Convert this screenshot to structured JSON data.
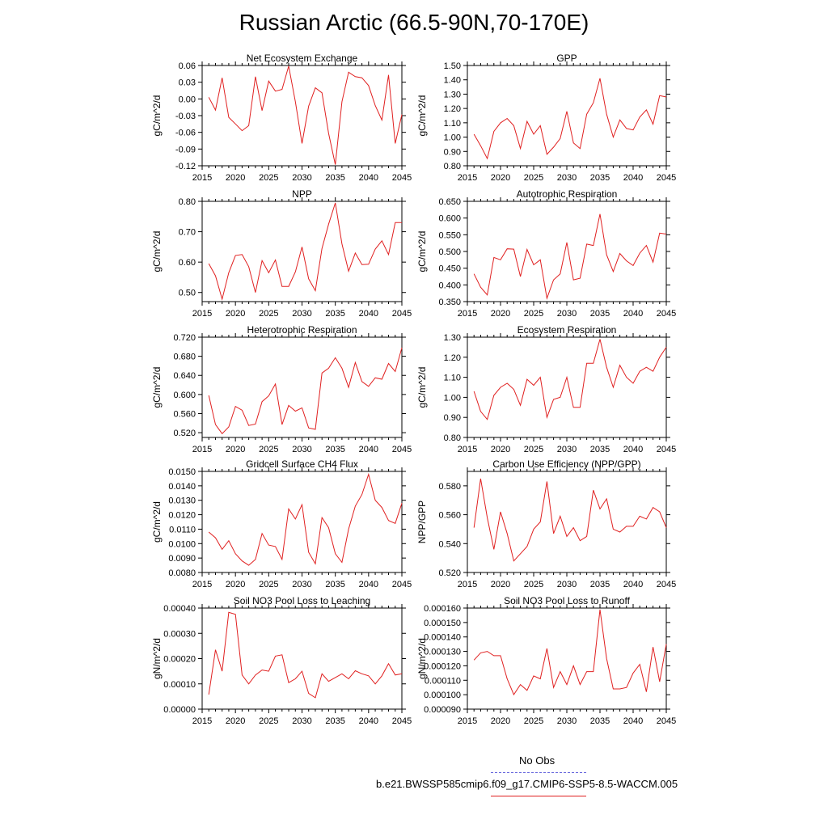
{
  "title": "Russian Arctic (66.5-90N,70-170E)",
  "legend": {
    "obs_label": "No Obs",
    "model_label": "b.e21.BWSSP585cmip6.f09_g17.CMIP6-SSP5-8.5-WACCM.005",
    "obs_color": "#6666dd",
    "model_color": "#e02020"
  },
  "chart_data": [
    {
      "type": "line",
      "title": "Net Ecosystem Exchange",
      "ylabel": "gC/m^2/d",
      "xlim": [
        2015,
        2045
      ],
      "ylim": [
        -0.12,
        0.06
      ],
      "xticks": [
        2015,
        2020,
        2025,
        2030,
        2035,
        2040,
        2045
      ],
      "yticks": [
        "-0.12",
        "-0.09",
        "-0.06",
        "-0.03",
        "0.00",
        "0.03",
        "0.06"
      ],
      "x": [
        2016,
        2017,
        2018,
        2019,
        2020,
        2021,
        2022,
        2023,
        2024,
        2025,
        2026,
        2027,
        2028,
        2029,
        2030,
        2031,
        2032,
        2033,
        2034,
        2035,
        2036,
        2037,
        2038,
        2039,
        2040,
        2041,
        2042,
        2043,
        2044,
        2045
      ],
      "series": [
        {
          "name": "b.e21.BWSSP585cmip6.f09_g17.CMIP6-SSP5-8.5-WACCM.005",
          "values": [
            0.003,
            -0.02,
            0.038,
            -0.033,
            -0.045,
            -0.057,
            -0.048,
            0.04,
            -0.021,
            0.032,
            0.014,
            0.017,
            0.059,
            -0.005,
            -0.08,
            -0.013,
            0.02,
            0.011,
            -0.062,
            -0.118,
            -0.005,
            0.048,
            0.04,
            0.038,
            0.024,
            -0.012,
            -0.038,
            0.043,
            -0.08,
            -0.028
          ]
        }
      ]
    },
    {
      "type": "line",
      "title": "GPP",
      "ylabel": "gC/m^2/d",
      "xlim": [
        2015,
        2045
      ],
      "ylim": [
        0.8,
        1.5
      ],
      "xticks": [
        2015,
        2020,
        2025,
        2030,
        2035,
        2040,
        2045
      ],
      "yticks": [
        "0.80",
        "0.90",
        "1.00",
        "1.10",
        "1.20",
        "1.30",
        "1.40",
        "1.50"
      ],
      "x": [
        2016,
        2017,
        2018,
        2019,
        2020,
        2021,
        2022,
        2023,
        2024,
        2025,
        2026,
        2027,
        2028,
        2029,
        2030,
        2031,
        2032,
        2033,
        2034,
        2035,
        2036,
        2037,
        2038,
        2039,
        2040,
        2041,
        2042,
        2043,
        2044,
        2045
      ],
      "series": [
        {
          "name": "b.e21.BWSSP585cmip6.f09_g17.CMIP6-SSP5-8.5-WACCM.005",
          "values": [
            1.02,
            0.94,
            0.85,
            1.04,
            1.1,
            1.13,
            1.08,
            0.92,
            1.11,
            1.02,
            1.08,
            0.88,
            0.93,
            0.99,
            1.18,
            0.96,
            0.92,
            1.16,
            1.24,
            1.41,
            1.16,
            1.0,
            1.12,
            1.06,
            1.05,
            1.14,
            1.19,
            1.09,
            1.29,
            1.28
          ]
        }
      ]
    },
    {
      "type": "line",
      "title": "NPP",
      "ylabel": "gC/m^2/d",
      "xlim": [
        2015,
        2045
      ],
      "ylim": [
        0.47,
        0.8
      ],
      "xticks": [
        2015,
        2020,
        2025,
        2030,
        2035,
        2040,
        2045
      ],
      "yticks": [
        "0.50",
        "0.60",
        "0.70",
        "0.80"
      ],
      "x": [
        2016,
        2017,
        2018,
        2019,
        2020,
        2021,
        2022,
        2023,
        2024,
        2025,
        2026,
        2027,
        2028,
        2029,
        2030,
        2031,
        2032,
        2033,
        2034,
        2035,
        2036,
        2037,
        2038,
        2039,
        2040,
        2041,
        2042,
        2043,
        2044,
        2045
      ],
      "series": [
        {
          "name": "b.e21.BWSSP585cmip6.f09_g17.CMIP6-SSP5-8.5-WACCM.005",
          "values": [
            0.595,
            0.555,
            0.478,
            0.565,
            0.622,
            0.625,
            0.585,
            0.5,
            0.605,
            0.565,
            0.607,
            0.52,
            0.52,
            0.568,
            0.65,
            0.545,
            0.506,
            0.645,
            0.725,
            0.795,
            0.66,
            0.57,
            0.63,
            0.592,
            0.593,
            0.643,
            0.67,
            0.625,
            0.73,
            0.73
          ]
        }
      ]
    },
    {
      "type": "line",
      "title": "Autotrophic Respiration",
      "ylabel": "gC/m^2/d",
      "xlim": [
        2015,
        2045
      ],
      "ylim": [
        0.35,
        0.65
      ],
      "xticks": [
        2015,
        2020,
        2025,
        2030,
        2035,
        2040,
        2045
      ],
      "yticks": [
        "0.350",
        "0.400",
        "0.450",
        "0.500",
        "0.550",
        "0.600",
        "0.650"
      ],
      "x": [
        2016,
        2017,
        2018,
        2019,
        2020,
        2021,
        2022,
        2023,
        2024,
        2025,
        2026,
        2027,
        2028,
        2029,
        2030,
        2031,
        2032,
        2033,
        2034,
        2035,
        2036,
        2037,
        2038,
        2039,
        2040,
        2041,
        2042,
        2043,
        2044,
        2045
      ],
      "series": [
        {
          "name": "b.e21.BWSSP585cmip6.f09_g17.CMIP6-SSP5-8.5-WACCM.005",
          "values": [
            0.433,
            0.393,
            0.37,
            0.482,
            0.475,
            0.508,
            0.507,
            0.425,
            0.506,
            0.46,
            0.475,
            0.36,
            0.415,
            0.433,
            0.527,
            0.415,
            0.42,
            0.522,
            0.518,
            0.612,
            0.49,
            0.44,
            0.494,
            0.472,
            0.458,
            0.495,
            0.518,
            0.468,
            0.555,
            0.552
          ]
        }
      ]
    },
    {
      "type": "line",
      "title": "Heterotrophic Respiration",
      "ylabel": "gC/m^2/d",
      "xlim": [
        2015,
        2045
      ],
      "ylim": [
        0.51,
        0.72
      ],
      "xticks": [
        2015,
        2020,
        2025,
        2030,
        2035,
        2040,
        2045
      ],
      "yticks": [
        "0.520",
        "0.560",
        "0.600",
        "0.640",
        "0.680",
        "0.720"
      ],
      "x": [
        2016,
        2017,
        2018,
        2019,
        2020,
        2021,
        2022,
        2023,
        2024,
        2025,
        2026,
        2027,
        2028,
        2029,
        2030,
        2031,
        2032,
        2033,
        2034,
        2035,
        2036,
        2037,
        2038,
        2039,
        2040,
        2041,
        2042,
        2043,
        2044,
        2045
      ],
      "series": [
        {
          "name": "b.e21.BWSSP585cmip6.f09_g17.CMIP6-SSP5-8.5-WACCM.005",
          "values": [
            0.598,
            0.537,
            0.518,
            0.532,
            0.575,
            0.567,
            0.535,
            0.538,
            0.585,
            0.597,
            0.622,
            0.537,
            0.577,
            0.565,
            0.572,
            0.53,
            0.527,
            0.645,
            0.655,
            0.677,
            0.655,
            0.615,
            0.667,
            0.627,
            0.617,
            0.635,
            0.632,
            0.665,
            0.648,
            0.698
          ]
        }
      ]
    },
    {
      "type": "line",
      "title": "Ecosystem Respiration",
      "ylabel": "gC/m^2/d",
      "xlim": [
        2015,
        2045
      ],
      "ylim": [
        0.8,
        1.3
      ],
      "xticks": [
        2015,
        2020,
        2025,
        2030,
        2035,
        2040,
        2045
      ],
      "yticks": [
        "0.80",
        "0.90",
        "1.00",
        "1.10",
        "1.20",
        "1.30"
      ],
      "x": [
        2016,
        2017,
        2018,
        2019,
        2020,
        2021,
        2022,
        2023,
        2024,
        2025,
        2026,
        2027,
        2028,
        2029,
        2030,
        2031,
        2032,
        2033,
        2034,
        2035,
        2036,
        2037,
        2038,
        2039,
        2040,
        2041,
        2042,
        2043,
        2044,
        2045
      ],
      "series": [
        {
          "name": "b.e21.BWSSP585cmip6.f09_g17.CMIP6-SSP5-8.5-WACCM.005",
          "values": [
            1.03,
            0.93,
            0.89,
            1.01,
            1.05,
            1.07,
            1.04,
            0.96,
            1.09,
            1.06,
            1.1,
            0.9,
            0.99,
            1.0,
            1.1,
            0.95,
            0.95,
            1.17,
            1.17,
            1.29,
            1.15,
            1.05,
            1.16,
            1.1,
            1.07,
            1.13,
            1.15,
            1.13,
            1.2,
            1.25
          ]
        }
      ]
    },
    {
      "type": "line",
      "title": "Gridcell Surface CH4 Flux",
      "ylabel": "gC/m^2/d",
      "xlim": [
        2015,
        2045
      ],
      "ylim": [
        0.008,
        0.015
      ],
      "xticks": [
        2015,
        2020,
        2025,
        2030,
        2035,
        2040,
        2045
      ],
      "yticks": [
        "0.0080",
        "0.0090",
        "0.0100",
        "0.0110",
        "0.0120",
        "0.0130",
        "0.0140",
        "0.0150"
      ],
      "x": [
        2016,
        2017,
        2018,
        2019,
        2020,
        2021,
        2022,
        2023,
        2024,
        2025,
        2026,
        2027,
        2028,
        2029,
        2030,
        2031,
        2032,
        2033,
        2034,
        2035,
        2036,
        2037,
        2038,
        2039,
        2040,
        2041,
        2042,
        2043,
        2044,
        2045
      ],
      "series": [
        {
          "name": "b.e21.BWSSP585cmip6.f09_g17.CMIP6-SSP5-8.5-WACCM.005",
          "values": [
            0.0108,
            0.0104,
            0.0096,
            0.0102,
            0.0093,
            0.0088,
            0.0085,
            0.0089,
            0.0107,
            0.0099,
            0.0098,
            0.0089,
            0.0124,
            0.0117,
            0.0127,
            0.0094,
            0.0086,
            0.0118,
            0.0111,
            0.0093,
            0.0087,
            0.011,
            0.0126,
            0.0134,
            0.0148,
            0.013,
            0.0125,
            0.0116,
            0.0114,
            0.0128
          ]
        }
      ]
    },
    {
      "type": "line",
      "title": "Carbon Use Efficiency (NPP/GPP)",
      "ylabel": "NPP/GPP",
      "xlim": [
        2015,
        2045
      ],
      "ylim": [
        0.52,
        0.59
      ],
      "xticks": [
        2015,
        2020,
        2025,
        2030,
        2035,
        2040,
        2045
      ],
      "yticks": [
        "0.520",
        "0.540",
        "0.560",
        "0.580"
      ],
      "x": [
        2016,
        2017,
        2018,
        2019,
        2020,
        2021,
        2022,
        2023,
        2024,
        2025,
        2026,
        2027,
        2028,
        2029,
        2030,
        2031,
        2032,
        2033,
        2034,
        2035,
        2036,
        2037,
        2038,
        2039,
        2040,
        2041,
        2042,
        2043,
        2044,
        2045
      ],
      "series": [
        {
          "name": "b.e21.BWSSP585cmip6.f09_g17.CMIP6-SSP5-8.5-WACCM.005",
          "values": [
            0.551,
            0.585,
            0.558,
            0.536,
            0.562,
            0.547,
            0.528,
            0.533,
            0.538,
            0.55,
            0.555,
            0.583,
            0.547,
            0.559,
            0.545,
            0.551,
            0.542,
            0.545,
            0.577,
            0.564,
            0.571,
            0.55,
            0.548,
            0.552,
            0.552,
            0.559,
            0.557,
            0.565,
            0.562,
            0.551
          ]
        }
      ]
    },
    {
      "type": "line",
      "title": "Soil NO3 Pool Loss to Leaching",
      "ylabel": "gN/m^2/d",
      "xlim": [
        2015,
        2045
      ],
      "ylim": [
        0.0,
        0.0004
      ],
      "xticks": [
        2015,
        2020,
        2025,
        2030,
        2035,
        2040,
        2045
      ],
      "yticks": [
        "0.00000",
        "0.00010",
        "0.00020",
        "0.00030",
        "0.00040"
      ],
      "x": [
        2016,
        2017,
        2018,
        2019,
        2020,
        2021,
        2022,
        2023,
        2024,
        2025,
        2026,
        2027,
        2028,
        2029,
        2030,
        2031,
        2032,
        2033,
        2034,
        2035,
        2036,
        2037,
        2038,
        2039,
        2040,
        2041,
        2042,
        2043,
        2044,
        2045
      ],
      "series": [
        {
          "name": "b.e21.BWSSP585cmip6.f09_g17.CMIP6-SSP5-8.5-WACCM.005",
          "values": [
            5.8e-05,
            0.000235,
            0.00015,
            0.000383,
            0.000375,
            0.000135,
            0.0001,
            0.000135,
            0.000155,
            0.00015,
            0.00021,
            0.000215,
            0.000105,
            0.00012,
            0.00015,
            6.2e-05,
            4.5e-05,
            0.00014,
            0.00011,
            0.000125,
            0.00014,
            0.00012,
            0.000152,
            0.00014,
            0.000132,
            0.0001,
            0.000132,
            0.00018,
            0.000135,
            0.00014
          ]
        }
      ]
    },
    {
      "type": "line",
      "title": "Soil NO3 Pool Loss to Runoff",
      "ylabel": "gN/m^2/d",
      "xlim": [
        2015,
        2045
      ],
      "ylim": [
        9e-05,
        0.00016
      ],
      "xticks": [
        2015,
        2020,
        2025,
        2030,
        2035,
        2040,
        2045
      ],
      "yticks": [
        "0.000090",
        "0.000100",
        "0.000110",
        "0.000120",
        "0.000130",
        "0.000140",
        "0.000150",
        "0.000160"
      ],
      "x": [
        2016,
        2017,
        2018,
        2019,
        2020,
        2021,
        2022,
        2023,
        2024,
        2025,
        2026,
        2027,
        2028,
        2029,
        2030,
        2031,
        2032,
        2033,
        2034,
        2035,
        2036,
        2037,
        2038,
        2039,
        2040,
        2041,
        2042,
        2043,
        2044,
        2045
      ],
      "series": [
        {
          "name": "b.e21.BWSSP585cmip6.f09_g17.CMIP6-SSP5-8.5-WACCM.005",
          "values": [
            0.000124,
            0.000129,
            0.00013,
            0.000127,
            0.000127,
            0.000111,
            0.0001,
            0.000107,
            0.000103,
            0.000113,
            0.000111,
            0.000132,
            0.000105,
            0.000116,
            0.000107,
            0.00012,
            0.000107,
            0.000116,
            0.000116,
            0.000159,
            0.000125,
            0.000104,
            0.000104,
            0.000105,
            0.000115,
            0.000121,
            0.000102,
            0.000133,
            0.000109,
            0.000135
          ]
        }
      ]
    }
  ]
}
